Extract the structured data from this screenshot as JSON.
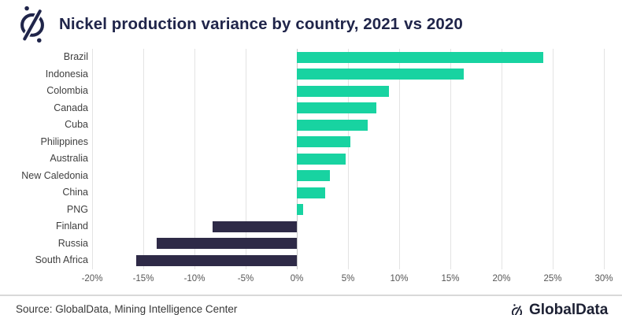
{
  "header": {
    "title": "Nickel production variance by country, 2021 vs 2020"
  },
  "chart_data": {
    "type": "bar",
    "orientation": "horizontal",
    "title": "Nickel production variance by country, 2021 vs 2020",
    "categories": [
      "Brazil",
      "Indonesia",
      "Colombia",
      "Canada",
      "Cuba",
      "Philippines",
      "Australia",
      "New Caledonia",
      "China",
      "PNG",
      "Finland",
      "Russia",
      "South Africa"
    ],
    "values": [
      24.1,
      16.3,
      9.0,
      7.8,
      6.9,
      5.2,
      4.8,
      3.2,
      2.8,
      0.6,
      -8.2,
      -13.7,
      -15.7
    ],
    "unit": "%",
    "xlabel": "",
    "ylabel": "",
    "xlim": [
      -20,
      30
    ],
    "x_tick_values": [
      -20,
      -15,
      -10,
      -5,
      0,
      5,
      10,
      15,
      20,
      25,
      30
    ],
    "x_tick_labels": [
      "-20%",
      "-15%",
      "-10%",
      "-5%",
      "0%",
      "5%",
      "10%",
      "15%",
      "20%",
      "25%",
      "30%"
    ],
    "grid": "vertical-on",
    "legend": "none",
    "positive_color": "#18d3a1",
    "negative_color": "#2e2a47"
  },
  "footer": {
    "source": "Source: GlobalData, Mining Intelligence Center",
    "brand": "GlobalData"
  }
}
